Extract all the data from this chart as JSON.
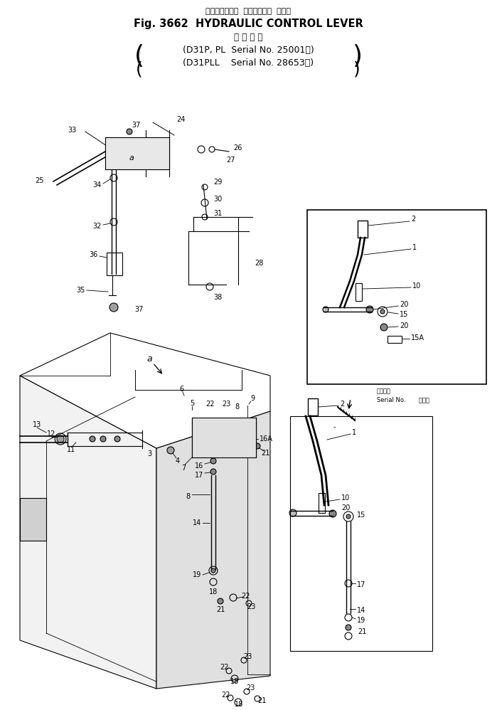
{
  "title_jp": "ハイドロリック  コントロール  レバー",
  "title_en": "Fig. 3662  HYDRAULIC CONTROL LEVER",
  "subtitle_jp": "適 用 号 機",
  "subtitle1": "(D31P, PL  Serial No. 25001～)",
  "subtitle2": "(D31PLL    Serial No. 28653～)",
  "bg_color": "#ffffff",
  "line_color": "#000000",
  "inset_label_jp": "適用号機",
  "inset_label_sn": "Serial No.       ・・～"
}
